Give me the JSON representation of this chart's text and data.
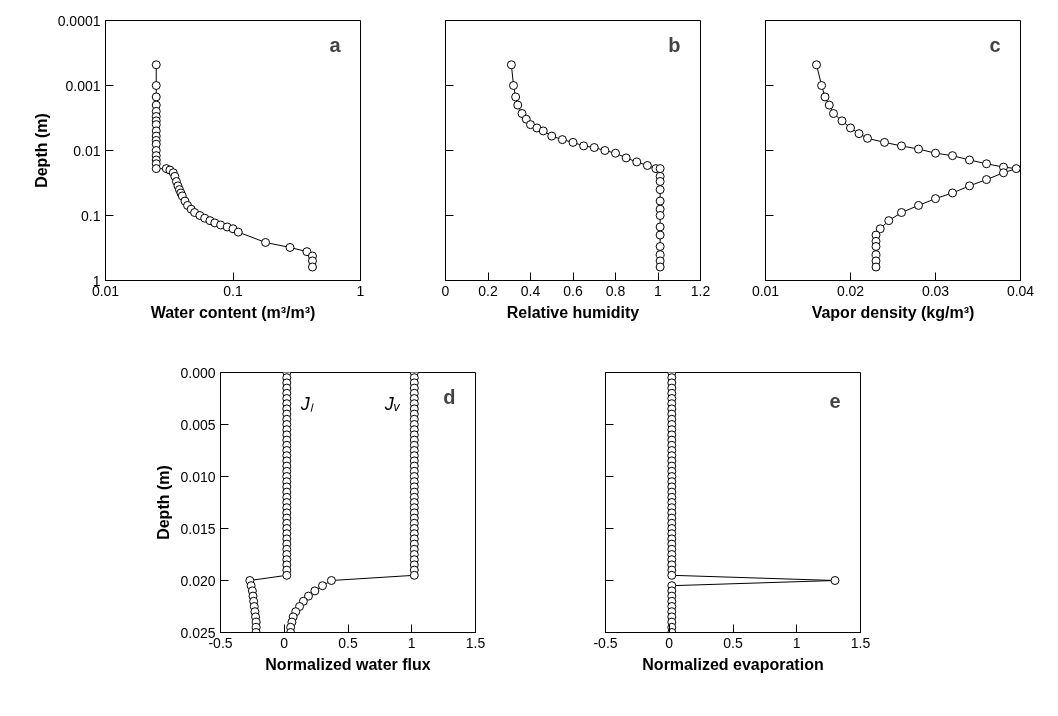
{
  "chart_data": [
    {
      "type": "line",
      "title": "a",
      "xlabel": "Water content (m³/m³)",
      "ylabel": "Depth (m)",
      "log": "xy",
      "marker": "circle",
      "xlim": [
        0.01,
        1
      ],
      "ylim": [
        1,
        0.0001
      ],
      "xticks": [
        0.01,
        0.1,
        1
      ],
      "yticks": [
        0.0001,
        0.001,
        0.01,
        0.1,
        1
      ],
      "series": [
        {
          "color": "#000000",
          "x": [
            0.025,
            0.025,
            0.025,
            0.025,
            0.025,
            0.025,
            0.025,
            0.025,
            0.025,
            0.025,
            0.025,
            0.025,
            0.025,
            0.025,
            0.025,
            0.025,
            0.025,
            0.03,
            0.032,
            0.034,
            0.035,
            0.036,
            0.037,
            0.038,
            0.039,
            0.04,
            0.042,
            0.044,
            0.047,
            0.05,
            0.055,
            0.06,
            0.066,
            0.072,
            0.08,
            0.09,
            0.1,
            0.11,
            0.18,
            0.28,
            0.38,
            0.42,
            0.42,
            0.42
          ],
          "values": [
            0.00048,
            0.001,
            0.0015,
            0.002,
            0.0025,
            0.003,
            0.0035,
            0.004,
            0.005,
            0.006,
            0.007,
            0.008,
            0.01,
            0.012,
            0.014,
            0.016,
            0.019,
            0.019,
            0.02,
            0.022,
            0.025,
            0.03,
            0.035,
            0.04,
            0.045,
            0.05,
            0.06,
            0.07,
            0.08,
            0.09,
            0.1,
            0.11,
            0.12,
            0.13,
            0.14,
            0.15,
            0.16,
            0.18,
            0.26,
            0.31,
            0.36,
            0.42,
            0.5,
            0.62
          ]
        }
      ]
    },
    {
      "type": "line",
      "title": "b",
      "xlabel": "Relative humidity",
      "log": "y",
      "marker": "circle",
      "tick_labels": "x",
      "xlim": [
        0,
        1.2
      ],
      "ylim": [
        1,
        0.0001
      ],
      "xticks": [
        0,
        0.2,
        0.4,
        0.6,
        0.8,
        1,
        1.2
      ],
      "yticks": [
        0.0001,
        0.001,
        0.01,
        0.1,
        1
      ],
      "series": [
        {
          "color": "#000000",
          "x": [
            0.31,
            0.32,
            0.33,
            0.34,
            0.36,
            0.38,
            0.4,
            0.43,
            0.46,
            0.5,
            0.55,
            0.6,
            0.65,
            0.7,
            0.75,
            0.8,
            0.85,
            0.9,
            0.95,
            0.99,
            1.01,
            1.01,
            1.01,
            1.01,
            1.01,
            1.01,
            1.01,
            1.01,
            1.01,
            1.01,
            1.01,
            1.01,
            1.01
          ],
          "values": [
            0.00048,
            0.001,
            0.0015,
            0.002,
            0.0027,
            0.0033,
            0.004,
            0.0045,
            0.005,
            0.006,
            0.0068,
            0.0075,
            0.0085,
            0.009,
            0.01,
            0.011,
            0.013,
            0.015,
            0.017,
            0.019,
            0.019,
            0.025,
            0.03,
            0.04,
            0.06,
            0.08,
            0.1,
            0.15,
            0.2,
            0.3,
            0.4,
            0.5,
            0.62
          ]
        }
      ]
    },
    {
      "type": "line",
      "title": "c",
      "xlabel": "Vapor density (kg/m³)",
      "log": "y",
      "marker": "circle",
      "tick_labels": "x",
      "xlim": [
        0.01,
        0.04
      ],
      "ylim": [
        1,
        0.0001
      ],
      "xticks": [
        0.01,
        0.02,
        0.03,
        0.04
      ],
      "yticks": [
        0.0001,
        0.001,
        0.01,
        0.1,
        1
      ],
      "series": [
        {
          "color": "#000000",
          "x": [
            0.016,
            0.0166,
            0.017,
            0.0175,
            0.018,
            0.019,
            0.02,
            0.021,
            0.022,
            0.024,
            0.026,
            0.028,
            0.03,
            0.032,
            0.034,
            0.036,
            0.038,
            0.0395,
            0.038,
            0.036,
            0.034,
            0.032,
            0.03,
            0.028,
            0.026,
            0.0245,
            0.0235,
            0.023,
            0.023,
            0.023,
            0.023,
            0.023,
            0.023
          ],
          "values": [
            0.00048,
            0.001,
            0.0015,
            0.002,
            0.0027,
            0.0035,
            0.0045,
            0.0055,
            0.0065,
            0.0075,
            0.0085,
            0.0095,
            0.011,
            0.012,
            0.014,
            0.016,
            0.018,
            0.019,
            0.022,
            0.028,
            0.035,
            0.045,
            0.055,
            0.07,
            0.09,
            0.12,
            0.16,
            0.2,
            0.25,
            0.3,
            0.4,
            0.5,
            0.62
          ]
        }
      ]
    },
    {
      "type": "line",
      "title": "d",
      "xlabel": "Normalized water flux",
      "ylabel": "Depth (m)",
      "marker": "circle",
      "xlim": [
        -0.5,
        1.5
      ],
      "ylim": [
        0.025,
        0
      ],
      "xticks": [
        -0.5,
        0,
        0.5,
        1,
        1.5
      ],
      "yticks": [
        {
          "value": 0,
          "label": "0.000"
        },
        {
          "value": 0.005,
          "label": "0.005"
        },
        {
          "value": 0.01,
          "label": "0.010"
        },
        {
          "value": 0.015,
          "label": "0.015"
        },
        {
          "value": 0.02,
          "label": "0.020"
        },
        {
          "value": 0.025,
          "label": "0.025"
        }
      ],
      "series": [
        {
          "name": "Jₗ",
          "color": "#000000",
          "x": [
            0.02,
            0.02,
            0.02,
            0.02,
            0.02,
            0.02,
            0.02,
            0.02,
            0.02,
            0.02,
            0.02,
            0.02,
            0.02,
            0.02,
            0.02,
            0.02,
            0.02,
            0.02,
            0.02,
            0.02,
            0.02,
            0.02,
            0.02,
            0.02,
            0.02,
            0.02,
            0.02,
            0.02,
            0.02,
            0.02,
            0.02,
            0.02,
            0.02,
            0.02,
            0.02,
            0.02,
            0.02,
            0.02,
            0.02,
            0.02,
            -0.27,
            -0.26,
            -0.25,
            -0.245,
            -0.24,
            -0.235,
            -0.23,
            -0.225,
            -0.22,
            -0.22,
            -0.22
          ],
          "values": [
            0,
            0.0005,
            0.001,
            0.0015,
            0.002,
            0.0025,
            0.003,
            0.0035,
            0.004,
            0.0045,
            0.005,
            0.0055,
            0.006,
            0.0065,
            0.007,
            0.0075,
            0.008,
            0.0085,
            0.009,
            0.0095,
            0.01,
            0.0105,
            0.011,
            0.0115,
            0.012,
            0.0125,
            0.013,
            0.0135,
            0.014,
            0.0145,
            0.015,
            0.0155,
            0.016,
            0.0165,
            0.017,
            0.0175,
            0.018,
            0.0185,
            0.019,
            0.0195,
            0.02,
            0.0205,
            0.021,
            0.0215,
            0.022,
            0.0225,
            0.023,
            0.0235,
            0.024,
            0.0245,
            0.025
          ]
        },
        {
          "name": "Jᵥ",
          "color": "#000000",
          "x": [
            1.02,
            1.02,
            1.02,
            1.02,
            1.02,
            1.02,
            1.02,
            1.02,
            1.02,
            1.02,
            1.02,
            1.02,
            1.02,
            1.02,
            1.02,
            1.02,
            1.02,
            1.02,
            1.02,
            1.02,
            1.02,
            1.02,
            1.02,
            1.02,
            1.02,
            1.02,
            1.02,
            1.02,
            1.02,
            1.02,
            1.02,
            1.02,
            1.02,
            1.02,
            1.02,
            1.02,
            1.02,
            1.02,
            1.02,
            1.02,
            0.37,
            0.3,
            0.24,
            0.19,
            0.15,
            0.12,
            0.09,
            0.07,
            0.06,
            0.05,
            0.05
          ],
          "values": [
            0,
            0.0005,
            0.001,
            0.0015,
            0.002,
            0.0025,
            0.003,
            0.0035,
            0.004,
            0.0045,
            0.005,
            0.0055,
            0.006,
            0.0065,
            0.007,
            0.0075,
            0.008,
            0.0085,
            0.009,
            0.0095,
            0.01,
            0.0105,
            0.011,
            0.0115,
            0.012,
            0.0125,
            0.013,
            0.0135,
            0.014,
            0.0145,
            0.015,
            0.0155,
            0.016,
            0.0165,
            0.017,
            0.0175,
            0.018,
            0.0185,
            0.019,
            0.0195,
            0.02,
            0.0205,
            0.021,
            0.0215,
            0.022,
            0.0225,
            0.023,
            0.0235,
            0.024,
            0.0245,
            0.025
          ]
        }
      ]
    },
    {
      "type": "line",
      "title": "e",
      "xlabel": "Normalized evaporation",
      "marker": "circle",
      "tick_labels": "x",
      "xlim": [
        -0.5,
        1.5
      ],
      "ylim": [
        0.025,
        0
      ],
      "xticks": [
        -0.5,
        0,
        0.5,
        1,
        1.5
      ],
      "yticks": [
        0,
        0.005,
        0.01,
        0.015,
        0.02,
        0.025
      ],
      "series": [
        {
          "color": "#000000",
          "x": [
            0.02,
            0.02,
            0.02,
            0.02,
            0.02,
            0.02,
            0.02,
            0.02,
            0.02,
            0.02,
            0.02,
            0.02,
            0.02,
            0.02,
            0.02,
            0.02,
            0.02,
            0.02,
            0.02,
            0.02,
            0.02,
            0.02,
            0.02,
            0.02,
            0.02,
            0.02,
            0.02,
            0.02,
            0.02,
            0.02,
            0.02,
            0.02,
            0.02,
            0.02,
            0.02,
            0.02,
            0.02,
            0.02,
            0.02,
            0.02,
            1.3,
            0.02,
            0.02,
            0.02,
            0.02,
            0.02,
            0.02,
            0.02,
            0.02,
            0.02,
            0.02
          ],
          "values": [
            0,
            0.0005,
            0.001,
            0.0015,
            0.002,
            0.0025,
            0.003,
            0.0035,
            0.004,
            0.0045,
            0.005,
            0.0055,
            0.006,
            0.0065,
            0.007,
            0.0075,
            0.008,
            0.0085,
            0.009,
            0.0095,
            0.01,
            0.0105,
            0.011,
            0.0115,
            0.012,
            0.0125,
            0.013,
            0.0135,
            0.014,
            0.0145,
            0.015,
            0.0155,
            0.016,
            0.0165,
            0.017,
            0.0175,
            0.018,
            0.0185,
            0.019,
            0.0195,
            0.02,
            0.0205,
            0.021,
            0.0215,
            0.022,
            0.0225,
            0.023,
            0.0235,
            0.024,
            0.0245,
            0.025
          ]
        }
      ]
    }
  ]
}
